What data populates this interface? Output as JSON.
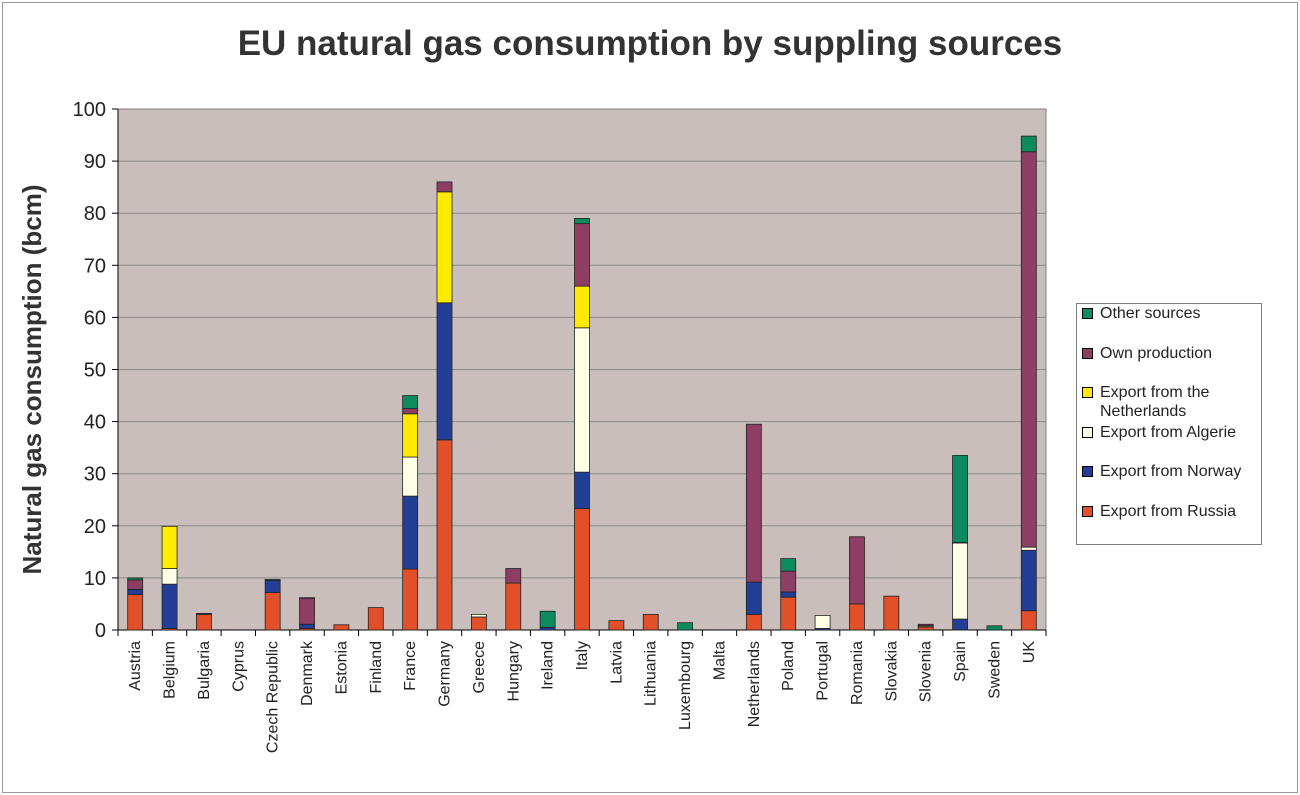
{
  "chart_data": {
    "type": "bar",
    "stacked": true,
    "title": "EU natural gas consumption by suppling sources",
    "ylabel": "Natural gas consumption (bcm)",
    "xlabel": "",
    "ylim": [
      0,
      100
    ],
    "yticks": [
      "0",
      "10",
      "20",
      "30",
      "40",
      "50",
      "60",
      "70",
      "80",
      "90",
      "100"
    ],
    "grid": true,
    "legend_position": "right",
    "plot_background": "#c9bebb",
    "categories": [
      "Austria",
      "Belgium",
      "Bulgaria",
      "Cyprus",
      "Czech Republic",
      "Denmark",
      "Estonia",
      "Finland",
      "France",
      "Germany",
      "Greece",
      "Hungary",
      "Ireland",
      "Italy",
      "Latvia",
      "Lithuania",
      "Luxembourg",
      "Malta",
      "Netherlands",
      "Poland",
      "Portugal",
      "Romania",
      "Slovakia",
      "Slovenia",
      "Spain",
      "Sweden",
      "UK"
    ],
    "series": [
      {
        "name": "Export from Russia",
        "color": "#e2502a",
        "values": [
          6.8,
          0.3,
          3.0,
          0,
          7.2,
          0.3,
          1.0,
          4.3,
          11.7,
          36.5,
          2.5,
          9.0,
          0,
          23.3,
          1.8,
          3.0,
          0,
          0,
          3.0,
          6.3,
          0,
          5.0,
          6.5,
          0.6,
          0,
          0,
          3.7
        ]
      },
      {
        "name": "Export from Norway",
        "color": "#233f95",
        "values": [
          1.0,
          8.5,
          0,
          0,
          2.3,
          0.8,
          0,
          0,
          14.0,
          26.3,
          0,
          0,
          0.5,
          7.0,
          0,
          0,
          0,
          0,
          6.2,
          1.0,
          0.3,
          0,
          0,
          0,
          2.1,
          0,
          11.6
        ]
      },
      {
        "name": "Export from Algerie",
        "color": "#ffffe6",
        "values": [
          0,
          3.0,
          0,
          0,
          0,
          0,
          0,
          0,
          7.5,
          0,
          0.5,
          0,
          0,
          27.7,
          0,
          0,
          0,
          0,
          0,
          0,
          2.5,
          0,
          0,
          0.2,
          14.6,
          0,
          0.6
        ]
      },
      {
        "name": "Export from the Netherlands",
        "color": "#ffea00",
        "values": [
          0,
          8.1,
          0,
          0,
          0,
          0,
          0,
          0,
          8.3,
          21.3,
          0,
          0,
          0,
          8.0,
          0,
          0,
          0,
          0,
          0,
          0,
          0,
          0,
          0,
          0,
          0,
          0,
          0
        ]
      },
      {
        "name": "Own production",
        "color": "#8c3e63",
        "values": [
          1.8,
          0,
          0.2,
          0,
          0,
          5.0,
          0,
          0,
          1.0,
          1.9,
          0,
          2.8,
          0,
          12.0,
          0,
          0,
          0,
          0,
          30.3,
          4.0,
          0,
          12.9,
          0,
          0.3,
          0.1,
          0,
          75.9
        ]
      },
      {
        "name": "Other sources",
        "color": "#0d8a5e",
        "values": [
          0.4,
          0,
          0,
          0,
          0.2,
          0.1,
          0,
          0,
          2.5,
          0,
          0,
          0,
          3.1,
          1.0,
          0,
          0,
          1.4,
          0,
          0,
          2.4,
          0,
          0,
          0,
          0,
          16.7,
          0.8,
          3.0
        ]
      }
    ],
    "legend_order": [
      "Other sources",
      "Own production",
      "Export from the Netherlands",
      "Export from Algerie",
      "Export from Norway",
      "Export from Russia"
    ]
  }
}
